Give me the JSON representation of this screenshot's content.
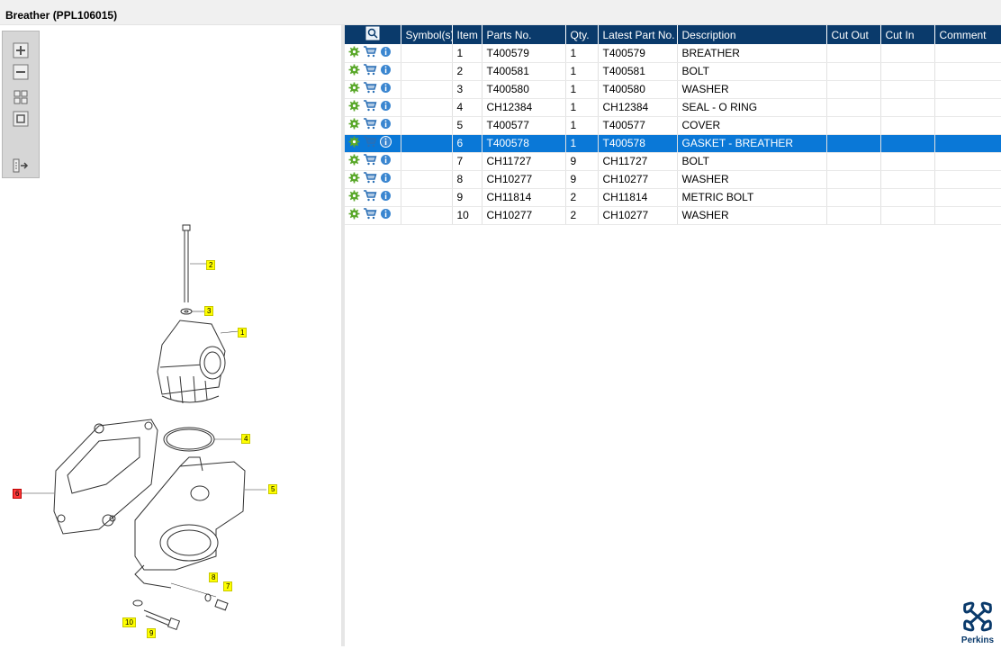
{
  "window": {
    "title": "Breather (PPL106015)"
  },
  "toolbox": {
    "icons": [
      "zoom-in-icon",
      "zoom-out-icon",
      "fit-view-icon",
      "actual-size-icon",
      "export-icon"
    ]
  },
  "diagram": {
    "callouts": [
      "2",
      "3",
      "1",
      "4",
      "5",
      "6",
      "8",
      "7",
      "10",
      "9"
    ]
  },
  "table": {
    "headers": [
      "",
      "Symbol(s)",
      "Item",
      "Parts No.",
      "Qty.",
      "Latest Part No.",
      "Description",
      "Cut Out",
      "Cut In",
      "Comment"
    ],
    "rows": [
      {
        "symbols": "",
        "item": "1",
        "parts_no": "T400579",
        "qty": "1",
        "latest": "T400579",
        "description": "BREATHER",
        "cut_out": "",
        "cut_in": "",
        "comment": ""
      },
      {
        "symbols": "",
        "item": "2",
        "parts_no": "T400581",
        "qty": "1",
        "latest": "T400581",
        "description": "BOLT",
        "cut_out": "",
        "cut_in": "",
        "comment": ""
      },
      {
        "symbols": "",
        "item": "3",
        "parts_no": "T400580",
        "qty": "1",
        "latest": "T400580",
        "description": "WASHER",
        "cut_out": "",
        "cut_in": "",
        "comment": ""
      },
      {
        "symbols": "",
        "item": "4",
        "parts_no": "CH12384",
        "qty": "1",
        "latest": "CH12384",
        "description": "SEAL - O RING",
        "cut_out": "",
        "cut_in": "",
        "comment": ""
      },
      {
        "symbols": "",
        "item": "5",
        "parts_no": "T400577",
        "qty": "1",
        "latest": "T400577",
        "description": "COVER",
        "cut_out": "",
        "cut_in": "",
        "comment": ""
      },
      {
        "symbols": "",
        "item": "6",
        "parts_no": "T400578",
        "qty": "1",
        "latest": "T400578",
        "description": "GASKET - BREATHER",
        "cut_out": "",
        "cut_in": "",
        "comment": ""
      },
      {
        "symbols": "",
        "item": "7",
        "parts_no": "CH11727",
        "qty": "9",
        "latest": "CH11727",
        "description": "BOLT",
        "cut_out": "",
        "cut_in": "",
        "comment": ""
      },
      {
        "symbols": "",
        "item": "8",
        "parts_no": "CH10277",
        "qty": "9",
        "latest": "CH10277",
        "description": "WASHER",
        "cut_out": "",
        "cut_in": "",
        "comment": ""
      },
      {
        "symbols": "",
        "item": "9",
        "parts_no": "CH11814",
        "qty": "2",
        "latest": "CH11814",
        "description": "METRIC BOLT",
        "cut_out": "",
        "cut_in": "",
        "comment": ""
      },
      {
        "symbols": "",
        "item": "10",
        "parts_no": "CH10277",
        "qty": "2",
        "latest": "CH10277",
        "description": "WASHER",
        "cut_out": "",
        "cut_in": "",
        "comment": ""
      }
    ],
    "selected_row": 5,
    "row_icons": [
      "gear-icon",
      "cart-icon",
      "info-icon"
    ]
  },
  "logo": {
    "text": "Perkins"
  },
  "colors": {
    "header_bg": "#0a3a6b",
    "selected_bg": "#0a78d7",
    "gear": "#5aa82a",
    "cart": "#2a6fb5",
    "info": "#3a86d0"
  }
}
